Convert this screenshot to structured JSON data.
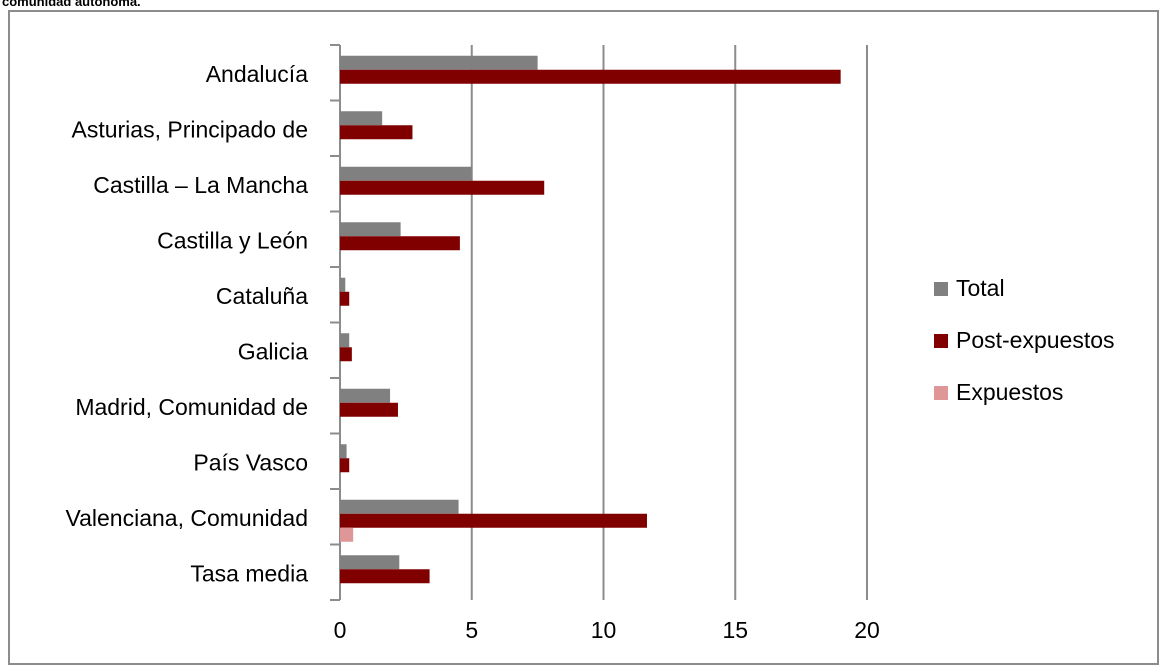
{
  "caption": "comunidad autónoma.",
  "chart_data": {
    "type": "bar",
    "orientation": "horizontal",
    "categories": [
      "Andalucía",
      "Asturias, Principado de",
      "Castilla – La Mancha",
      "Castilla y León",
      "Cataluña",
      "Galicia",
      "Madrid, Comunidad de",
      "País Vasco",
      "Valenciana, Comunidad",
      "Tasa media"
    ],
    "series": [
      {
        "name": "Total",
        "color": "#808080",
        "values": [
          7.5,
          1.6,
          5.0,
          2.3,
          0.2,
          0.35,
          1.9,
          0.25,
          4.5,
          2.25
        ]
      },
      {
        "name": "Post-expuestos",
        "color": "#800000",
        "values": [
          19.0,
          2.75,
          7.75,
          4.55,
          0.35,
          0.45,
          2.2,
          0.35,
          11.65,
          3.4
        ]
      },
      {
        "name": "Expuestos",
        "color": "#df9696",
        "values": [
          0,
          0,
          0,
          0,
          0,
          0,
          0,
          0,
          0.5,
          0
        ]
      }
    ],
    "xlim": [
      0,
      20
    ],
    "xticks": [
      "0",
      "5",
      "10",
      "15",
      "20"
    ],
    "grid": true,
    "legend_position": "right"
  }
}
